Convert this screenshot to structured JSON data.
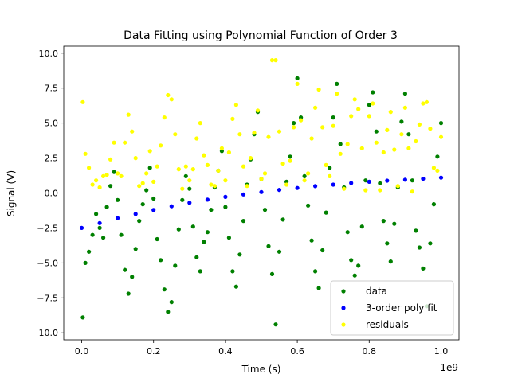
{
  "chart_data": {
    "type": "scatter",
    "title": "Data Fitting using Polynomial Function of Order 3",
    "xlabel": "Time (s)",
    "ylabel": "Signal (V)",
    "x_multiplier_label": "1e9",
    "xlim": [
      -50000000,
      1050000000
    ],
    "ylim": [
      -10.5,
      10.5
    ],
    "xticks": [
      0,
      200000000,
      400000000,
      600000000,
      800000000,
      1000000000
    ],
    "xtick_labels": [
      "0.0",
      "0.2",
      "0.4",
      "0.6",
      "0.8",
      "1.0"
    ],
    "yticks": [
      -10,
      -7.5,
      -5,
      -2.5,
      0,
      2.5,
      5,
      7.5,
      10
    ],
    "ytick_labels": [
      "−10.0",
      "−7.5",
      "−5.0",
      "−2.5",
      "0.0",
      "2.5",
      "5.0",
      "7.5",
      "10.0"
    ],
    "grid": false,
    "legend_position": "lower-right",
    "series": [
      {
        "name": "data",
        "color": "#008000",
        "x": [
          0.003,
          0.01,
          0.02,
          0.03,
          0.04,
          0.05,
          0.06,
          0.07,
          0.08,
          0.09,
          0.1,
          0.11,
          0.12,
          0.13,
          0.14,
          0.15,
          0.16,
          0.17,
          0.18,
          0.19,
          0.2,
          0.21,
          0.22,
          0.23,
          0.24,
          0.25,
          0.26,
          0.27,
          0.28,
          0.29,
          0.3,
          0.31,
          0.32,
          0.33,
          0.34,
          0.35,
          0.36,
          0.37,
          0.38,
          0.39,
          0.4,
          0.41,
          0.42,
          0.43,
          0.44,
          0.45,
          0.46,
          0.47,
          0.48,
          0.49,
          0.5,
          0.51,
          0.52,
          0.53,
          0.54,
          0.55,
          0.56,
          0.57,
          0.58,
          0.59,
          0.6,
          0.61,
          0.62,
          0.63,
          0.64,
          0.65,
          0.66,
          0.67,
          0.68,
          0.69,
          0.7,
          0.71,
          0.72,
          0.73,
          0.74,
          0.75,
          0.76,
          0.77,
          0.78,
          0.79,
          0.8,
          0.81,
          0.82,
          0.83,
          0.84,
          0.85,
          0.86,
          0.87,
          0.88,
          0.89,
          0.9,
          0.91,
          0.92,
          0.93,
          0.94,
          0.95,
          0.96,
          0.97,
          0.98,
          0.99,
          1.0
        ],
        "y": [
          -8.9,
          -5.0,
          -4.2,
          -3.0,
          -1.5,
          -2.5,
          -3.2,
          -1.0,
          0.5,
          1.5,
          -0.5,
          -3.0,
          -5.5,
          -7.2,
          -6.0,
          -4.0,
          -2.0,
          -0.8,
          0.2,
          1.8,
          -0.4,
          -3.3,
          -4.8,
          -6.9,
          -8.5,
          -7.8,
          -5.2,
          -2.6,
          -0.5,
          1.2,
          0.3,
          -2.4,
          -4.6,
          -5.6,
          -3.5,
          -2.8,
          -1.2,
          0.4,
          1.6,
          3.0,
          -1.0,
          -3.2,
          -5.6,
          -6.7,
          -4.4,
          -2.0,
          0.6,
          2.4,
          4.2,
          5.8,
          1.0,
          -1.2,
          -3.8,
          -5.8,
          -9.4,
          -4.2,
          -1.9,
          0.8,
          2.6,
          5.0,
          8.2,
          5.4,
          1.2,
          -0.9,
          -3.4,
          -5.6,
          -6.8,
          -4.1,
          -1.4,
          1.8,
          5.4,
          7.8,
          3.5,
          0.4,
          -2.8,
          -4.8,
          -5.9,
          -5.2,
          -2.4,
          0.9,
          6.3,
          7.2,
          4.4,
          0.7,
          -2.0,
          -3.6,
          -4.9,
          -2.2,
          0.4,
          5.1,
          7.1,
          4.2,
          0.9,
          -2.7,
          -3.9,
          -5.4,
          -8.1,
          -3.6,
          -0.8,
          2.6,
          5.0
        ]
      },
      {
        "name": "3-order poly fit",
        "color": "#0000ff",
        "x": [
          0.0,
          0.05,
          0.1,
          0.15,
          0.2,
          0.25,
          0.3,
          0.35,
          0.4,
          0.45,
          0.5,
          0.55,
          0.6,
          0.65,
          0.7,
          0.75,
          0.8,
          0.85,
          0.9,
          0.95,
          1.0
        ],
        "y": [
          -2.5,
          -2.15,
          -1.8,
          -1.5,
          -1.22,
          -0.95,
          -0.7,
          -0.48,
          -0.28,
          -0.1,
          0.07,
          0.22,
          0.36,
          0.49,
          0.6,
          0.71,
          0.8,
          0.88,
          0.95,
          1.02,
          1.1
        ]
      },
      {
        "name": "residuals",
        "color": "#ffff00",
        "x": [
          0.003,
          0.01,
          0.02,
          0.03,
          0.04,
          0.05,
          0.06,
          0.07,
          0.08,
          0.09,
          0.1,
          0.11,
          0.12,
          0.13,
          0.14,
          0.15,
          0.16,
          0.17,
          0.18,
          0.19,
          0.2,
          0.21,
          0.22,
          0.23,
          0.24,
          0.25,
          0.26,
          0.27,
          0.28,
          0.29,
          0.3,
          0.31,
          0.32,
          0.33,
          0.34,
          0.35,
          0.36,
          0.37,
          0.38,
          0.39,
          0.4,
          0.41,
          0.42,
          0.43,
          0.44,
          0.45,
          0.46,
          0.47,
          0.48,
          0.49,
          0.5,
          0.51,
          0.52,
          0.53,
          0.54,
          0.55,
          0.56,
          0.57,
          0.58,
          0.59,
          0.6,
          0.61,
          0.62,
          0.63,
          0.64,
          0.65,
          0.66,
          0.67,
          0.68,
          0.69,
          0.7,
          0.71,
          0.72,
          0.73,
          0.74,
          0.75,
          0.76,
          0.77,
          0.78,
          0.79,
          0.8,
          0.81,
          0.82,
          0.83,
          0.84,
          0.85,
          0.86,
          0.87,
          0.88,
          0.89,
          0.9,
          0.91,
          0.92,
          0.93,
          0.94,
          0.95,
          0.96,
          0.97,
          0.98,
          0.99,
          1.0
        ],
        "y": [
          6.5,
          2.8,
          1.8,
          0.6,
          0.9,
          0.4,
          1.2,
          1.3,
          2.4,
          3.6,
          1.4,
          1.2,
          3.6,
          5.6,
          4.4,
          2.5,
          0.5,
          0.7,
          1.4,
          3.0,
          0.8,
          1.9,
          3.4,
          5.4,
          7.0,
          6.7,
          4.2,
          1.7,
          0.3,
          1.9,
          0.9,
          1.7,
          3.9,
          5.0,
          2.7,
          2.0,
          0.6,
          0.5,
          1.6,
          3.2,
          0.9,
          2.9,
          5.3,
          6.3,
          4.2,
          1.9,
          0.5,
          2.5,
          4.3,
          5.9,
          1.0,
          1.4,
          4.0,
          9.5,
          9.5,
          4.4,
          2.1,
          0.6,
          2.3,
          4.7,
          7.8,
          5.2,
          0.9,
          1.4,
          3.9,
          6.1,
          7.4,
          4.7,
          2.0,
          1.2,
          4.8,
          7.1,
          2.8,
          0.3,
          3.5,
          5.5,
          6.7,
          6.0,
          3.2,
          0.2,
          5.5,
          6.4,
          3.6,
          0.2,
          2.9,
          4.5,
          5.8,
          3.1,
          0.5,
          4.2,
          6.1,
          3.2,
          0.1,
          3.7,
          4.9,
          6.4,
          6.5,
          4.6,
          1.8,
          1.6,
          4.0
        ]
      }
    ]
  }
}
